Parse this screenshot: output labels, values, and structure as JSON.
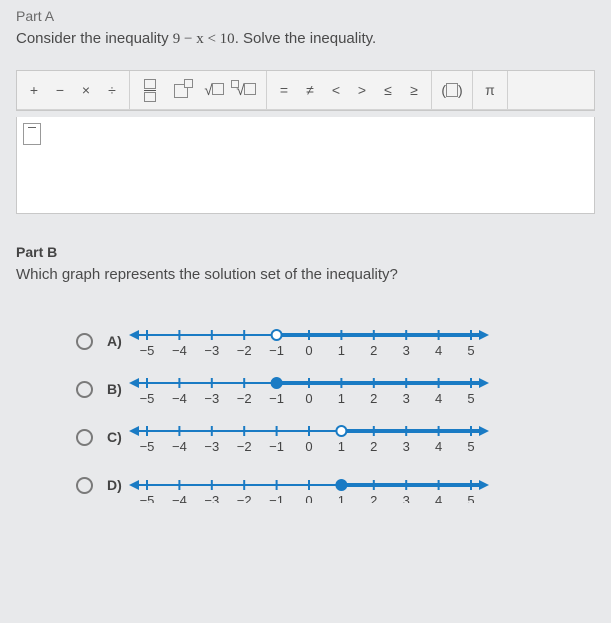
{
  "partA": {
    "label": "Part A",
    "prompt_prefix": "Consider the inequality ",
    "inequality": "9 − x < 10",
    "prompt_suffix": ". Solve the inequality."
  },
  "toolbar": {
    "groups": [
      {
        "items": [
          "+",
          "−",
          "×",
          "÷"
        ]
      },
      {
        "items": [
          "frac",
          "exp",
          "sqrt",
          "nroot"
        ]
      },
      {
        "items": [
          "=",
          "≠",
          "<",
          ">",
          "≤",
          "≥"
        ]
      },
      {
        "items": [
          "paren"
        ]
      },
      {
        "items": [
          "π"
        ]
      }
    ]
  },
  "partB": {
    "label": "Part B",
    "question": "Which graph represents the solution set of the inequality?"
  },
  "numberline": {
    "min": -5,
    "max": 5,
    "labels": [
      -5,
      -4,
      -3,
      -2,
      -1,
      0,
      1,
      2,
      3,
      4,
      5
    ],
    "axis_color": "#1a7bc4",
    "tick_color": "#1a7bc4",
    "label_color": "#444444",
    "arrow_color": "#1a7bc4",
    "point_fill_open": "#ffffff",
    "point_fill_closed": "#1a7bc4",
    "point_stroke": "#1a7bc4",
    "label_fontsize": 13
  },
  "choices": [
    {
      "letter": "A)",
      "point_at": -1,
      "open": true,
      "ray_dir": "right",
      "cutoff": false
    },
    {
      "letter": "B)",
      "point_at": -1,
      "open": false,
      "ray_dir": "right",
      "cutoff": false
    },
    {
      "letter": "C)",
      "point_at": 1,
      "open": true,
      "ray_dir": "right",
      "cutoff": false
    },
    {
      "letter": "D)",
      "point_at": 1,
      "open": false,
      "ray_dir": "right",
      "cutoff": true
    }
  ]
}
